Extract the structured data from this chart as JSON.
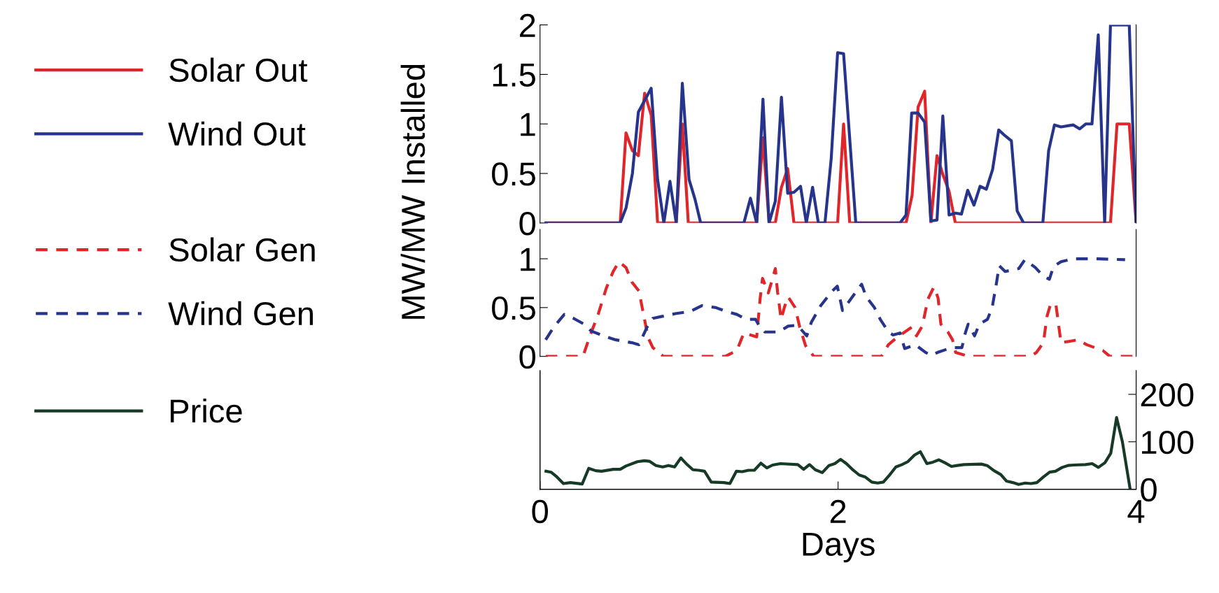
{
  "chart_data": [
    {
      "type": "line",
      "ylabel": "MW/MW Installed",
      "xlim": [
        0,
        4
      ],
      "ylim": [
        0,
        2
      ],
      "yticks": [
        0,
        0.5,
        1,
        1.5,
        2
      ],
      "tick_labels": "y",
      "legend": "left",
      "series": [
        {
          "name": "Solar Out",
          "color": "#e0262a",
          "x": [
            0.04,
            0.538,
            0.577,
            0.62,
            0.66,
            0.702,
            0.746,
            0.789,
            0.914,
            0.955,
            0.995,
            1.454,
            1.496,
            1.537,
            1.579,
            1.62,
            1.662,
            1.704,
            1.997,
            2.037,
            2.078,
            2.456,
            2.497,
            2.537,
            2.581,
            2.623,
            2.664,
            2.703,
            2.745,
            2.787,
            3.828,
            3.872,
            3.954,
            4.0
          ],
          "values": [
            0,
            0,
            0.91,
            0.73,
            0.68,
            1.31,
            1.09,
            0,
            0,
            1.0,
            0,
            0,
            0.86,
            0,
            0,
            0.36,
            0.55,
            0,
            0,
            1.0,
            0,
            0,
            0.28,
            1.17,
            1.33,
            0,
            0.68,
            0.49,
            0.32,
            0,
            0,
            1.0,
            1.0,
            0
          ]
        },
        {
          "name": "Wind Out",
          "color": "#27348b",
          "x": [
            0.04,
            0.538,
            0.577,
            0.62,
            0.66,
            0.746,
            0.789,
            0.831,
            0.872,
            0.914,
            0.955,
            1.0,
            1.04,
            1.078,
            1.368,
            1.412,
            1.454,
            1.496,
            1.537,
            1.579,
            1.62,
            1.662,
            1.704,
            1.748,
            1.787,
            1.829,
            1.868,
            1.912,
            1.954,
            1.997,
            2.037,
            2.119,
            2.416,
            2.456,
            2.494,
            2.537,
            2.581,
            2.623,
            2.664,
            2.703,
            2.745,
            2.787,
            2.828,
            2.87,
            2.912,
            2.953,
            2.995,
            3.037,
            3.078,
            3.121,
            3.163,
            3.202,
            3.245,
            3.374,
            3.413,
            3.452,
            3.496,
            3.579,
            3.621,
            3.663,
            3.704,
            3.746,
            3.789,
            3.828,
            3.954,
            4.0
          ],
          "values": [
            0,
            0,
            0.15,
            0.5,
            1.12,
            1.36,
            0.44,
            0,
            0.42,
            0,
            1.41,
            0.44,
            0.24,
            0,
            0,
            0.25,
            0,
            1.25,
            0,
            0.22,
            1.27,
            0.3,
            0.31,
            0.37,
            0,
            0.36,
            0,
            0,
            0.65,
            1.72,
            1.71,
            0,
            0,
            0.08,
            1.11,
            1.11,
            1.02,
            0.02,
            0.03,
            1.08,
            0.08,
            0.1,
            0.09,
            0.33,
            0.18,
            0.37,
            0.34,
            0.54,
            0.94,
            0.88,
            0.83,
            0.12,
            0,
            0,
            0.73,
            0.99,
            0.97,
            0.99,
            0.95,
            1.0,
            1.0,
            1.9,
            0,
            2.0,
            2.0,
            0
          ]
        }
      ]
    },
    {
      "type": "line",
      "xlim": [
        0,
        4
      ],
      "ylim": [
        0,
        1.3
      ],
      "yticks": [
        0,
        0.5,
        1
      ],
      "tick_labels": "y",
      "legend": "left",
      "series": [
        {
          "name": "Solar Gen",
          "color": "#e0262a",
          "line_style": "dashed",
          "x": [
            0.038,
            0.288,
            0.335,
            0.39,
            0.445,
            0.491,
            0.53,
            0.577,
            0.617,
            0.664,
            0.692,
            0.726,
            0.757,
            0.828,
            1.243,
            1.321,
            1.368,
            1.454,
            1.477,
            1.493,
            1.532,
            1.555,
            1.579,
            1.594,
            1.618,
            1.641,
            1.665,
            1.712,
            1.743,
            1.782,
            1.837,
            2.291,
            2.338,
            2.4,
            2.495,
            2.526,
            2.565,
            2.604,
            2.643,
            2.671,
            2.69,
            2.737,
            2.768,
            2.789,
            2.878,
            3.293,
            3.331,
            3.378,
            3.402,
            3.425,
            3.461,
            3.496,
            3.612,
            3.668,
            3.777,
            3.824,
            4.0
          ],
          "values": [
            0,
            0,
            0.21,
            0.43,
            0.7,
            0.87,
            0.97,
            0.91,
            0.76,
            0.67,
            0.45,
            0.19,
            0.09,
            0,
            0,
            0.06,
            0.24,
            0.2,
            0.59,
            0.8,
            0.65,
            0.77,
            0.9,
            0.66,
            0.38,
            0.51,
            0.61,
            0.5,
            0.3,
            0.11,
            0,
            0,
            0.12,
            0.2,
            0.3,
            0.21,
            0.31,
            0.59,
            0.71,
            0.6,
            0.33,
            0.25,
            0.17,
            0.04,
            0,
            0,
            0.04,
            0.14,
            0.41,
            0.53,
            0.54,
            0.14,
            0.17,
            0.12,
            0.06,
            0,
            0
          ]
        },
        {
          "name": "Wind Gen",
          "color": "#27348b",
          "line_style": "dashed",
          "x": [
            0.038,
            0.092,
            0.163,
            0.225,
            0.296,
            0.343,
            0.445,
            0.507,
            0.617,
            0.664,
            0.718,
            0.757,
            0.82,
            0.914,
            1.008,
            1.086,
            1.18,
            1.25,
            1.321,
            1.383,
            1.446,
            1.469,
            1.508,
            1.602,
            1.665,
            1.727,
            1.79,
            1.821,
            1.884,
            1.955,
            1.995,
            2.03,
            2.158,
            2.189,
            2.244,
            2.283,
            2.338,
            2.369,
            2.416,
            2.447,
            2.518,
            2.588,
            2.627,
            2.667,
            2.761,
            2.831,
            2.854,
            2.873,
            2.916,
            2.948,
            3.003,
            3.034,
            3.065,
            3.081,
            3.121,
            3.213,
            3.253,
            3.324,
            3.378,
            3.418,
            3.446,
            3.496,
            3.575,
            3.746,
            3.926
          ],
          "values": [
            0.17,
            0.3,
            0.43,
            0.39,
            0.33,
            0.26,
            0.2,
            0.17,
            0.14,
            0.12,
            0.3,
            0.39,
            0.41,
            0.44,
            0.46,
            0.52,
            0.5,
            0.46,
            0.43,
            0.38,
            0.38,
            0.32,
            0.25,
            0.25,
            0.31,
            0.32,
            0.21,
            0.35,
            0.52,
            0.66,
            0.72,
            0.47,
            0.74,
            0.61,
            0.5,
            0.38,
            0.25,
            0.22,
            0.24,
            0.08,
            0.12,
            0.04,
            0.01,
            0.04,
            0.09,
            0.09,
            0.24,
            0.33,
            0.21,
            0.33,
            0.38,
            0.5,
            0.77,
            0.93,
            0.87,
            0.9,
            0.99,
            0.91,
            0.82,
            0.79,
            0.92,
            0.97,
            1.0,
            1.0,
            0.99
          ]
        }
      ]
    },
    {
      "type": "line",
      "xlabel": "Days",
      "xlim": [
        0,
        4
      ],
      "xticks": [
        0,
        2,
        4
      ],
      "y2lim": [
        0,
        250
      ],
      "y2ticks": [
        0,
        100,
        200
      ],
      "legend": "left",
      "series": [
        {
          "name": "Price",
          "color": "#163a26",
          "axis": "y2",
          "x": [
            0.04,
            0.074,
            0.113,
            0.157,
            0.204,
            0.283,
            0.327,
            0.374,
            0.413,
            0.491,
            0.538,
            0.577,
            0.653,
            0.7,
            0.734,
            0.778,
            0.823,
            0.862,
            0.903,
            0.945,
            0.987,
            1.026,
            1.065,
            1.104,
            1.149,
            1.235,
            1.274,
            1.318,
            1.357,
            1.399,
            1.438,
            1.482,
            1.522,
            1.561,
            1.613,
            1.73,
            1.769,
            1.808,
            1.847,
            1.894,
            1.939,
            1.978,
            2.017,
            2.056,
            2.095,
            2.142,
            2.181,
            2.226,
            2.265,
            2.304,
            2.343,
            2.388,
            2.429,
            2.468,
            2.513,
            2.552,
            2.596,
            2.636,
            2.677,
            2.716,
            2.761,
            2.8,
            2.844,
            2.961,
            3.0,
            3.047,
            3.092,
            3.131,
            3.173,
            3.212,
            3.256,
            3.295,
            3.334,
            3.379,
            3.42,
            3.459,
            3.504,
            3.543,
            3.582,
            3.66,
            3.705,
            3.747,
            3.791,
            3.83,
            3.869,
            3.908,
            3.96
          ],
          "values": [
            38,
            36,
            26,
            12,
            14,
            11,
            44,
            39,
            38,
            42,
            42,
            49,
            58,
            60,
            59,
            50,
            47,
            50,
            47,
            66,
            52,
            41,
            40,
            38,
            15,
            14,
            12,
            38,
            37,
            40,
            40,
            55,
            45,
            51,
            54,
            52,
            42,
            52,
            41,
            35,
            50,
            54,
            63,
            54,
            42,
            30,
            26,
            15,
            13,
            15,
            29,
            47,
            52,
            58,
            72,
            79,
            54,
            57,
            62,
            56,
            48,
            50,
            52,
            53,
            50,
            39,
            31,
            17,
            14,
            10,
            13,
            12,
            14,
            26,
            36,
            38,
            46,
            50,
            51,
            52,
            54,
            46,
            56,
            76,
            151,
            100,
            0
          ]
        }
      ]
    }
  ]
}
